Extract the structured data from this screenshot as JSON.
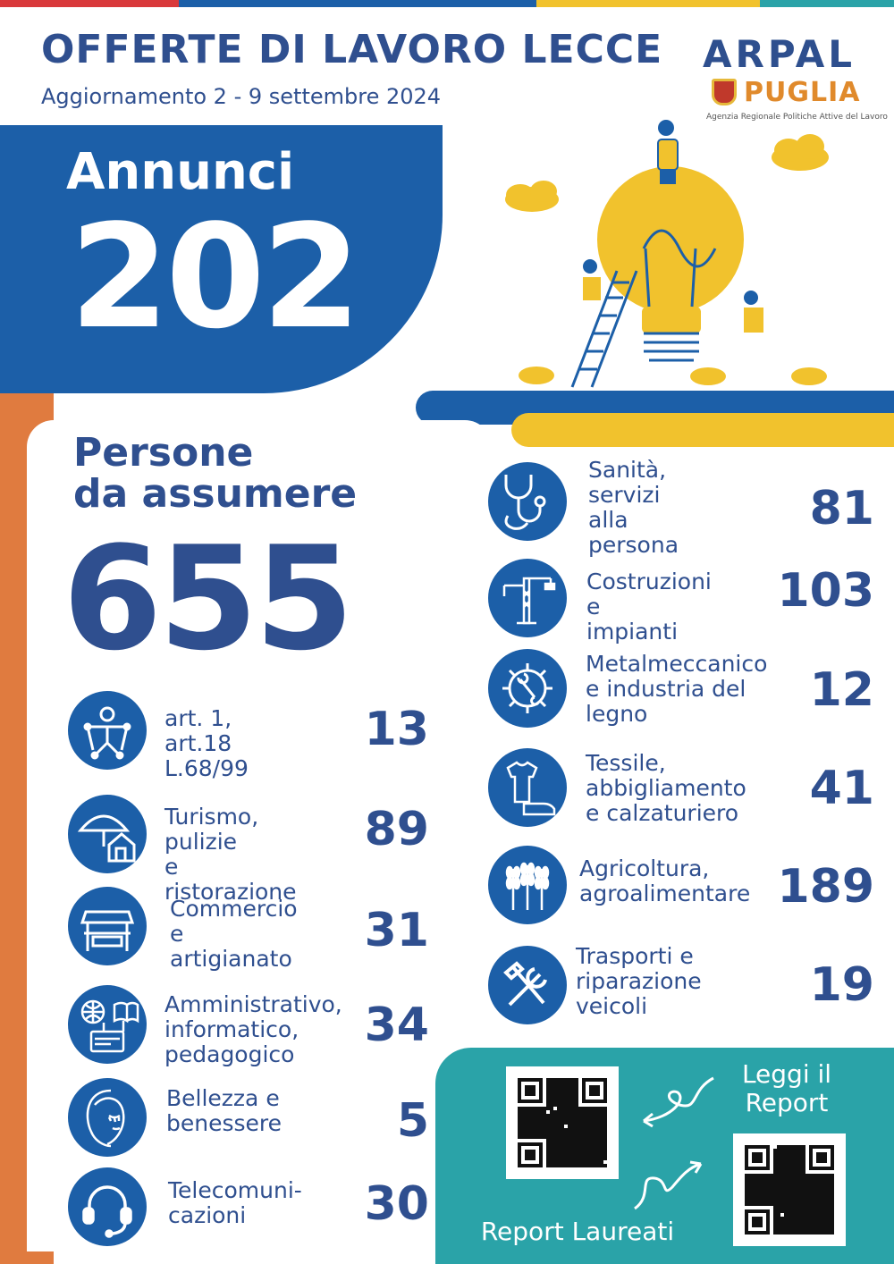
{
  "header": {
    "title": "OFFERTE DI LAVORO LECCE",
    "subtitle": "Aggiornamento 2 - 9 settembre 2024"
  },
  "logo": {
    "line1": "ARPAL",
    "line2": "PUGLIA",
    "tagline": "Agenzia Regionale Politiche Attive del Lavoro"
  },
  "annunci": {
    "label": "Annunci",
    "value": "202"
  },
  "persone": {
    "label": "Persone\nda assumere",
    "value": "655"
  },
  "categories_left": [
    {
      "icon": "accessibility-icon",
      "label": "art. 1, art.18\nL.68/99",
      "value": "13"
    },
    {
      "icon": "umbrella-house-icon",
      "label": "Turismo, pulizie\ne ristorazione",
      "value": "89"
    },
    {
      "icon": "market-stall-icon",
      "label": "Commercio e\nartigianato",
      "value": "31"
    },
    {
      "icon": "globe-book-icon",
      "label": "Amministrativo,\ninformatico,\npedagogico",
      "value": "34"
    },
    {
      "icon": "face-icon",
      "label": "Bellezza e\nbenessere",
      "value": "5"
    },
    {
      "icon": "headset-icon",
      "label": "Telecomuni-\ncazioni",
      "value": "30"
    }
  ],
  "categories_right": [
    {
      "icon": "stethoscope-icon",
      "label": "Sanità,\nservizi alla\npersona",
      "value": "81"
    },
    {
      "icon": "crane-icon",
      "label": "Costruzioni e\nimpianti",
      "value": "103"
    },
    {
      "icon": "gear-wrench-icon",
      "label": "Metalmeccanico\ne industria del\nlegno",
      "value": "12"
    },
    {
      "icon": "shirt-shoe-icon",
      "label": "Tessile,\nabbigliamento\ne calzaturiero",
      "value": "41"
    },
    {
      "icon": "wheat-icon",
      "label": "Agricoltura,\nagroalimentare",
      "value": "189"
    },
    {
      "icon": "tools-icon",
      "label": "Trasporti e\nriparazione\nveicoli",
      "value": "19"
    }
  ],
  "qr": {
    "report_label": "Leggi il\nReport",
    "laureati_label": "Report Laureati"
  },
  "colors": {
    "primary_blue": "#1c5fa8",
    "text_blue": "#2f4f8f",
    "yellow": "#f1c22d",
    "orange": "#e07b3f",
    "teal": "#2aa3a8"
  }
}
